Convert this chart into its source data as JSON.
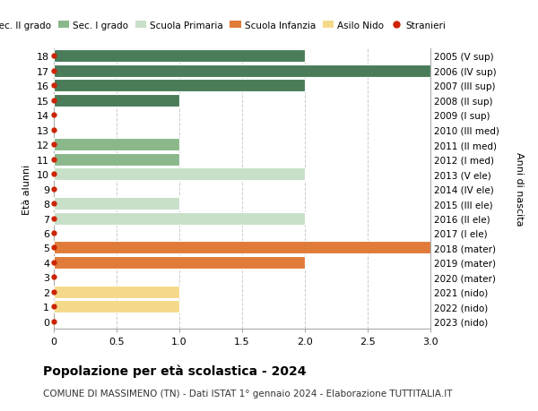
{
  "ages": [
    0,
    1,
    2,
    3,
    4,
    5,
    6,
    7,
    8,
    9,
    10,
    11,
    12,
    13,
    14,
    15,
    16,
    17,
    18
  ],
  "right_labels_by_age": {
    "0": "2023 (nido)",
    "1": "2022 (nido)",
    "2": "2021 (nido)",
    "3": "2020 (mater)",
    "4": "2019 (mater)",
    "5": "2018 (mater)",
    "6": "2017 (I ele)",
    "7": "2016 (II ele)",
    "8": "2015 (III ele)",
    "9": "2014 (IV ele)",
    "10": "2013 (V ele)",
    "11": "2012 (I med)",
    "12": "2011 (II med)",
    "13": "2010 (III med)",
    "14": "2009 (I sup)",
    "15": "2008 (II sup)",
    "16": "2007 (III sup)",
    "17": "2006 (IV sup)",
    "18": "2005 (V sup)"
  },
  "bar_data": [
    {
      "age": 0,
      "value": 0,
      "color": "#f5d98b"
    },
    {
      "age": 1,
      "value": 1,
      "color": "#f5d98b"
    },
    {
      "age": 2,
      "value": 1,
      "color": "#f5d98b"
    },
    {
      "age": 3,
      "value": 0,
      "color": "#e07b39"
    },
    {
      "age": 4,
      "value": 2,
      "color": "#e07b39"
    },
    {
      "age": 5,
      "value": 3,
      "color": "#e07b39"
    },
    {
      "age": 6,
      "value": 0,
      "color": "#c8dfc8"
    },
    {
      "age": 7,
      "value": 2,
      "color": "#c8dfc8"
    },
    {
      "age": 8,
      "value": 1,
      "color": "#c8dfc8"
    },
    {
      "age": 9,
      "value": 0,
      "color": "#c8dfc8"
    },
    {
      "age": 10,
      "value": 2,
      "color": "#c8dfc8"
    },
    {
      "age": 11,
      "value": 1,
      "color": "#8ab88a"
    },
    {
      "age": 12,
      "value": 1,
      "color": "#8ab88a"
    },
    {
      "age": 13,
      "value": 0,
      "color": "#4a7c59"
    },
    {
      "age": 14,
      "value": 0,
      "color": "#4a7c59"
    },
    {
      "age": 15,
      "value": 1,
      "color": "#4a7c59"
    },
    {
      "age": 16,
      "value": 2,
      "color": "#4a7c59"
    },
    {
      "age": 17,
      "value": 3,
      "color": "#4a7c59"
    },
    {
      "age": 18,
      "value": 2,
      "color": "#4a7c59"
    }
  ],
  "stranieri_ages": [
    0,
    1,
    2,
    3,
    4,
    5,
    6,
    7,
    8,
    9,
    10,
    11,
    12,
    13,
    14,
    15,
    16,
    17,
    18
  ],
  "legend_labels": [
    "Sec. II grado",
    "Sec. I grado",
    "Scuola Primaria",
    "Scuola Infanzia",
    "Asilo Nido",
    "Stranieri"
  ],
  "legend_colors": [
    "#4a7c59",
    "#8ab88a",
    "#c8dfc8",
    "#e07b39",
    "#f5d98b",
    "#cc2200"
  ],
  "title": "Popolazione per età scolastica - 2024",
  "subtitle": "COMUNE DI MASSIMENO (TN) - Dati ISTAT 1° gennaio 2024 - Elaborazione TUTTITALIA.IT",
  "ylabel_left": "Età alunni",
  "ylabel_right": "Anni di nascita",
  "xlim": [
    0,
    3.0
  ],
  "ylim": [
    -0.5,
    18.5
  ],
  "background_color": "#ffffff",
  "grid_color": "#cccccc",
  "bar_height": 0.85
}
